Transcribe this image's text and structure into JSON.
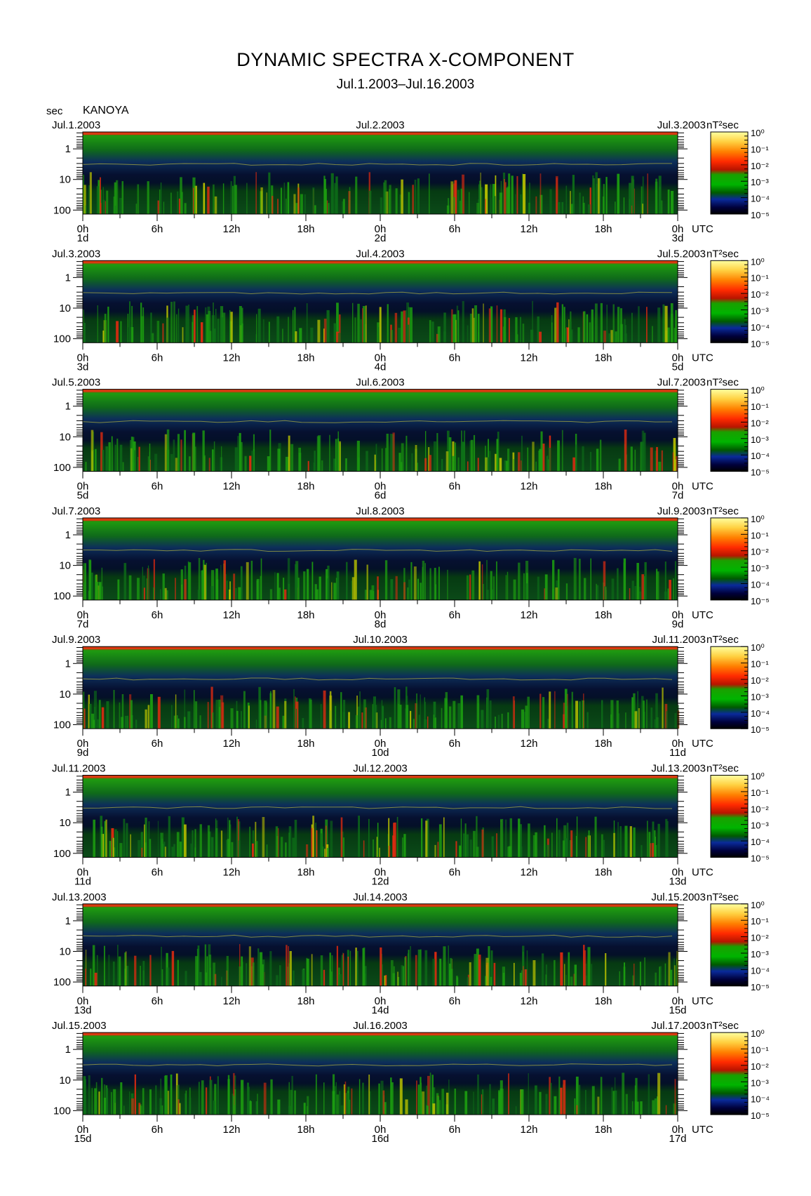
{
  "title": "DYNAMIC SPECTRA X-COMPONENT",
  "subtitle": "Jul.1.2003–Jul.16.2003",
  "station": "KANOYA",
  "chart_data": {
    "type": "heatmap",
    "ylabel": "sec",
    "y_axis": {
      "ticks": [
        "1",
        "10",
        "100"
      ],
      "scale": "log",
      "reversed": true
    },
    "x_axis": {
      "ticks": [
        "0h",
        "6h",
        "12h",
        "18h",
        "0h",
        "6h",
        "12h",
        "18h",
        "0h"
      ],
      "unit": "UTC"
    },
    "colorbar": {
      "unit": "nT²sec",
      "labels": [
        "10⁰",
        "10⁻¹",
        "10⁻²",
        "10⁻³",
        "10⁻⁴",
        "10⁻⁵"
      ],
      "colors": [
        "#ffff9a",
        "#ffd040",
        "#ff8000",
        "#ff2a00",
        "#c81800",
        "#20a000",
        "#00c000",
        "#006400",
        "#0a2a9a",
        "#000040",
        "#000000"
      ]
    },
    "panels": [
      {
        "start": "Jul.1.2003",
        "mid": "Jul.2.2003",
        "end": "Jul.3.2003",
        "days": [
          "1d",
          "2d",
          "3d"
        ]
      },
      {
        "start": "Jul.3.2003",
        "mid": "Jul.4.2003",
        "end": "Jul.5.2003",
        "days": [
          "3d",
          "4d",
          "5d"
        ]
      },
      {
        "start": "Jul.5.2003",
        "mid": "Jul.6.2003",
        "end": "Jul.7.2003",
        "days": [
          "5d",
          "6d",
          "7d"
        ]
      },
      {
        "start": "Jul.7.2003",
        "mid": "Jul.8.2003",
        "end": "Jul.9.2003",
        "days": [
          "7d",
          "8d",
          "9d"
        ]
      },
      {
        "start": "Jul.9.2003",
        "mid": "Jul.10.2003",
        "end": "Jul.11.2003",
        "days": [
          "9d",
          "10d",
          "11d"
        ]
      },
      {
        "start": "Jul.11.2003",
        "mid": "Jul.12.2003",
        "end": "Jul.13.2003",
        "days": [
          "11d",
          "12d",
          "13d"
        ]
      },
      {
        "start": "Jul.13.2003",
        "mid": "Jul.14.2003",
        "end": "Jul.15.2003",
        "days": [
          "13d",
          "14d",
          "15d"
        ]
      },
      {
        "start": "Jul.15.2003",
        "mid": "Jul.16.2003",
        "end": "Jul.17.2003",
        "days": [
          "15d",
          "16d",
          "17d"
        ]
      }
    ]
  }
}
